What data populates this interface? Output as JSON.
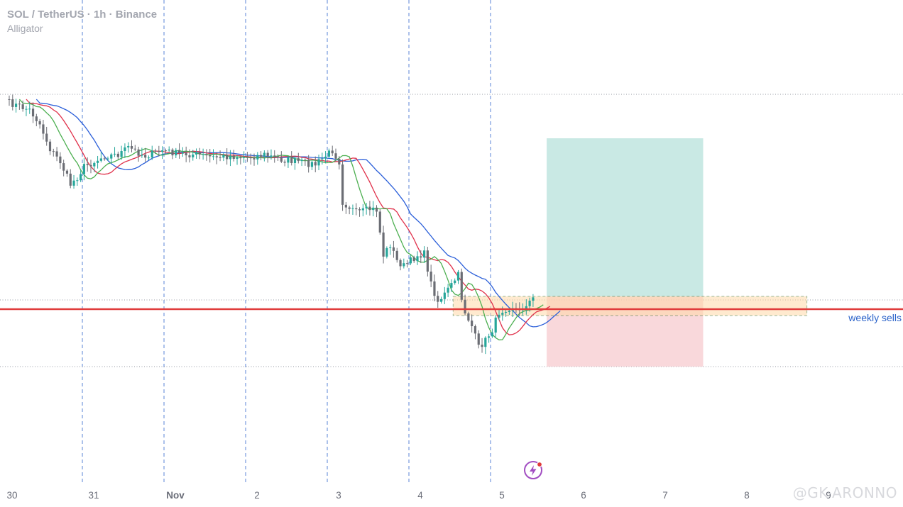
{
  "chart_data": {
    "type": "candlestick",
    "title": "SOL / TetherUS · 1h · Binance",
    "indicator": "Alligator",
    "x_ticks": [
      {
        "label": "30",
        "t": 0
      },
      {
        "label": "31",
        "t": 24
      },
      {
        "label": "Nov",
        "t": 48
      },
      {
        "label": "2",
        "t": 72
      },
      {
        "label": "3",
        "t": 96
      },
      {
        "label": "4",
        "t": 120
      },
      {
        "label": "5",
        "t": 144
      },
      {
        "label": "6",
        "t": 168
      },
      {
        "label": "7",
        "t": 192
      },
      {
        "label": "8",
        "t": 216
      },
      {
        "label": "9",
        "t": 240
      }
    ],
    "session_breaks_t": [
      21.5,
      45.5,
      69.5,
      93.5,
      117.5,
      141.5
    ],
    "y_range": [
      -200,
      700
    ],
    "hlines": [
      {
        "name": "weekly sells",
        "y": 436,
        "color": "#e03b3b",
        "style": "solid",
        "label": "weekly sells",
        "label_color": "#2a62c9"
      },
      {
        "name": "upper-dotted",
        "y": 133,
        "color": "#9598a1",
        "style": "dotted"
      },
      {
        "name": "mid-dotted",
        "y": 423,
        "color": "#9598a1",
        "style": "dotted"
      },
      {
        "name": "lower-dotted",
        "y": 517,
        "color": "#9598a1",
        "style": "dotted"
      }
    ],
    "zone": {
      "t0": 130.5,
      "t1": 234.5,
      "y_top": 418,
      "y_bottom": 445,
      "color": "#ffd9a8"
    },
    "position": {
      "t0": 158,
      "t1": 204,
      "entry": 418,
      "target": 195,
      "stop": 517,
      "profit_color": "#b2dfd8",
      "loss_color": "#f7c7cc"
    },
    "up_color": "#26a69a",
    "down_color": "#6b6d74",
    "alligator": {
      "jaw_color": "#2b5fd9",
      "teeth_color": "#e0304a",
      "lips_color": "#4caf50"
    },
    "anchors": [
      [
        0,
        145
      ],
      [
        3,
        150
      ],
      [
        6,
        155
      ],
      [
        9,
        175
      ],
      [
        12,
        210
      ],
      [
        15,
        228
      ],
      [
        18,
        260
      ],
      [
        20,
        250
      ],
      [
        22,
        235
      ],
      [
        25,
        228
      ],
      [
        28,
        220
      ],
      [
        32,
        218
      ],
      [
        35,
        208
      ],
      [
        40,
        220
      ],
      [
        45,
        212
      ],
      [
        50,
        217
      ],
      [
        55,
        218
      ],
      [
        60,
        222
      ],
      [
        65,
        220
      ],
      [
        70,
        222
      ],
      [
        75,
        218
      ],
      [
        80,
        225
      ],
      [
        85,
        228
      ],
      [
        90,
        232
      ],
      [
        93,
        220
      ],
      [
        95,
        212
      ],
      [
        97,
        228
      ],
      [
        98,
        285
      ],
      [
        100,
        292
      ],
      [
        102,
        300
      ],
      [
        104,
        298
      ],
      [
        106,
        295
      ],
      [
        108,
        296
      ],
      [
        110,
        360
      ],
      [
        112,
        345
      ],
      [
        114,
        368
      ],
      [
        116,
        375
      ],
      [
        118,
        368
      ],
      [
        120,
        360
      ],
      [
        122,
        358
      ],
      [
        124,
        400
      ],
      [
        126,
        425
      ],
      [
        128,
        415
      ],
      [
        130,
        402
      ],
      [
        132,
        388
      ],
      [
        133,
        420
      ],
      [
        134,
        440
      ],
      [
        136,
        460
      ],
      [
        138,
        490
      ],
      [
        140,
        480
      ],
      [
        142,
        465
      ],
      [
        144,
        440
      ],
      [
        146,
        435
      ],
      [
        148,
        432
      ],
      [
        150,
        440
      ],
      [
        152,
        428
      ],
      [
        154,
        422
      ]
    ]
  },
  "watermark": {
    "text": "@GK-ARONNO"
  }
}
